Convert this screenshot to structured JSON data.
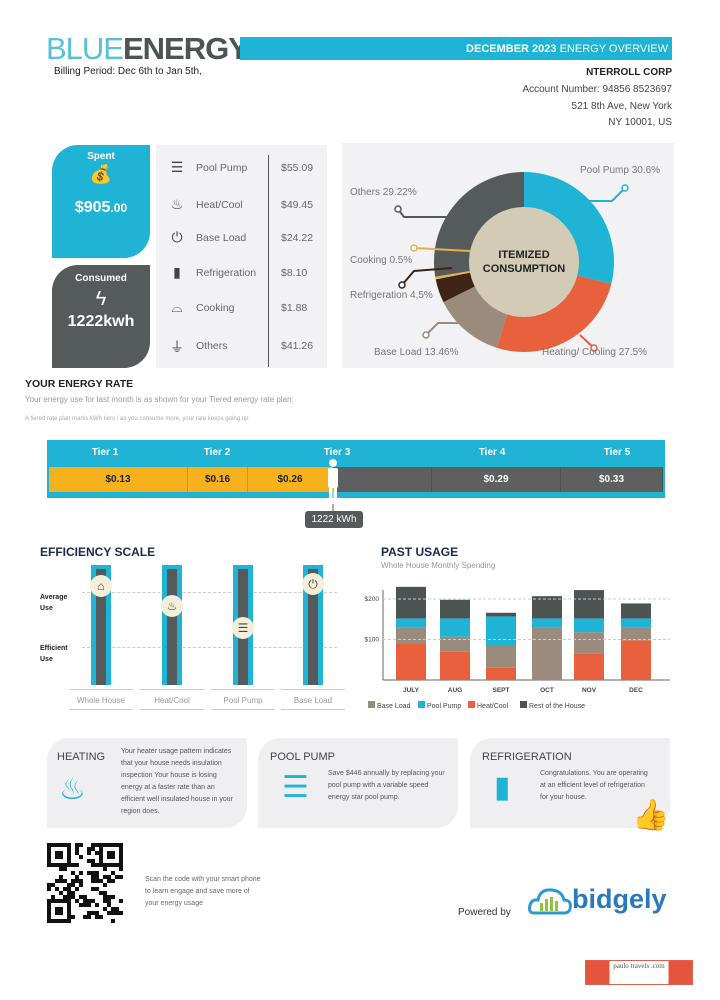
{
  "header": {
    "brand_light": "BLUE",
    "brand_bold": "ENERGY",
    "billing_period": "Billing Period: Dec 6th to Jan 5th,",
    "banner_bold": "DECEMBER 2023",
    "banner_rest": " ENERGY OVERVIEW",
    "customer": "NTERROLL CORP",
    "account": "Account Number: 94856 8523697",
    "address1": "521 8th Ave, New York",
    "address2": "NY 10001, US"
  },
  "summary": {
    "spent_label": "Spent",
    "spent_value": "$905",
    "spent_cents": ".00",
    "consumed_label": "Consumed",
    "consumed_value": "1222kwh"
  },
  "breakdown": [
    {
      "icon": "pool-ladder",
      "name": "Pool Pump",
      "amount": "$55.09"
    },
    {
      "icon": "heater",
      "name": "Heat/Cool",
      "amount": "$49.45"
    },
    {
      "icon": "power",
      "name": "Base Load",
      "amount": "$24.22"
    },
    {
      "icon": "fridge",
      "name": "Refrigeration",
      "amount": "$8.10"
    },
    {
      "icon": "pot",
      "name": "Cooking",
      "amount": "$1.88"
    },
    {
      "icon": "plug",
      "name": "Others",
      "amount": "$41.26"
    }
  ],
  "chart_data": [
    {
      "type": "pie",
      "title": "ITEMIZED CONSUMPTION",
      "slices": [
        {
          "label": "Pool Pump 30.6%",
          "name": "Pool Pump",
          "value": 30.6,
          "color": "#1fb3d5"
        },
        {
          "label": "Heating/ Cooling 27.5%",
          "name": "Heating/Cooling",
          "value": 27.5,
          "color": "#e8603c"
        },
        {
          "label": "Base Load 13.46%",
          "name": "Base Load",
          "value": 13.46,
          "color": "#9a8b7c"
        },
        {
          "label": "Refrigeration 4,5%",
          "name": "Refrigeration",
          "value": 4.5,
          "color": "#3d2414"
        },
        {
          "label": "Cooking 0.5%",
          "name": "Cooking",
          "value": 0.5,
          "color": "#e6b04a"
        },
        {
          "label": "Others 29.22%",
          "name": "Others",
          "value": 29.22,
          "color": "#555b5a"
        }
      ]
    },
    {
      "type": "bar",
      "stacked": true,
      "title": "PAST USAGE",
      "subtitle": "Whole House Monthly Spending",
      "categories": [
        "JULY",
        "AUG",
        "SEPT",
        "OCT",
        "NOV",
        "DEC"
      ],
      "yticks": [
        {
          "value": 100,
          "label": "$100"
        },
        {
          "value": 200,
          "label": "$200"
        }
      ],
      "ylim": [
        0,
        250
      ],
      "grid": "dashed-horizontal",
      "legend": "bottom",
      "series": [
        {
          "name": "Heat/Cool",
          "color": "#e8603c",
          "values": [
            90,
            70,
            30,
            0,
            66,
            98
          ]
        },
        {
          "name": "Base Load",
          "color": "#9a8b7c",
          "values": [
            40,
            37,
            54,
            130,
            52,
            32
          ]
        },
        {
          "name": "Pool Pump",
          "color": "#1fb3d5",
          "values": [
            22,
            45,
            73,
            22,
            34,
            22
          ]
        },
        {
          "name": "Rest of the House",
          "color": "#4d5252",
          "values": [
            78,
            46,
            9,
            55,
            70,
            37
          ]
        }
      ],
      "legend_order": [
        "Base Load",
        "Pool Pump",
        "Heat/Cool",
        "Rest of the House"
      ]
    }
  ],
  "rate": {
    "title": "YOUR ENERGY RATE",
    "subtitle": "Your energy use for last month is as shown for your Tiered energy rate plan:",
    "note": "A tiered rate plan marks kWh tiers / as you consume more, your rate keeps going up",
    "tiers": [
      {
        "label": "Tier 1",
        "price": "$0.13"
      },
      {
        "label": "Tier 2",
        "price": "$0.16"
      },
      {
        "label": "Tier 3",
        "price": "$0.26"
      },
      {
        "label": "Tier 4",
        "price": "$0.29"
      },
      {
        "label": "Tier 5",
        "price": "$0.33"
      }
    ],
    "usage_marker": "1222 kWh",
    "colors": {
      "used": "#f5b21c",
      "unused": "#5c605f",
      "frame": "#1fb3d5"
    }
  },
  "efficiency": {
    "title": "EFFICIENCY SCALE",
    "average_label": "Average Use",
    "efficient_label": "Efficient Use",
    "items": [
      {
        "label": "Whole House",
        "icon": "house"
      },
      {
        "label": "Heat/Cool",
        "icon": "heater"
      },
      {
        "label": "Pool Pump",
        "icon": "pool-ladder"
      },
      {
        "label": "Base Load",
        "icon": "power"
      }
    ]
  },
  "tips": [
    {
      "title": "HEATING",
      "icon": "heater",
      "text": "Your heater usage pattern indicates that your house needs insulation inspection Your house is losing energy at a faster rate than an efficient well insulated house in your region does."
    },
    {
      "title": "POOL PUMP",
      "icon": "pool-ladder",
      "text": "Save $446 annually by replacing your pool pump with a variable speed energy star pool pump."
    },
    {
      "title": "REFRIGERATION",
      "icon": "fridge",
      "text": "Congratulations. You are operating at an efficient level of refrigeration for your house."
    }
  ],
  "footer": {
    "scan_text": "Scan the code with your smart phone to learn engage and save more of your energy usage",
    "powered_by": "Powered by",
    "partner": "bidgely",
    "watermark": "paulo travels .com"
  }
}
